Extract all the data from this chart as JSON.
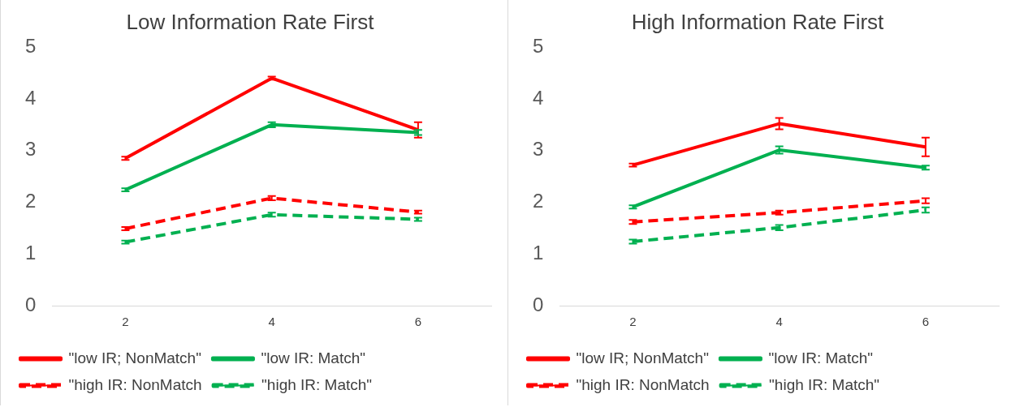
{
  "chart_data": [
    {
      "type": "line",
      "title": "Low Information Rate First",
      "categories": [
        "2",
        "4",
        "6"
      ],
      "ylim": [
        0,
        5
      ],
      "yticks": [
        0,
        1,
        2,
        3,
        4,
        5
      ],
      "grid": false,
      "legend": "bottom",
      "series": [
        {
          "name": "\"low IR; NonMatch\"",
          "color": "#ff0000",
          "line_style": "solid",
          "values": [
            2.85,
            4.4,
            3.4
          ],
          "errors": [
            0.03,
            0.03,
            0.15
          ]
        },
        {
          "name": "\"low IR: Match\"",
          "color": "#00b050",
          "line_style": "solid",
          "values": [
            2.24,
            3.5,
            3.35
          ],
          "errors": [
            0.03,
            0.05,
            0.05
          ]
        },
        {
          "name": "\"high IR: NonMatch",
          "color": "#ff0000",
          "line_style": "dashed",
          "values": [
            1.49,
            2.08,
            1.81
          ],
          "errors": [
            0.03,
            0.04,
            0.03
          ]
        },
        {
          "name": "\"high IR: Match\"",
          "color": "#00b050",
          "line_style": "dashed",
          "values": [
            1.23,
            1.76,
            1.67
          ],
          "errors": [
            0.03,
            0.04,
            0.03
          ]
        }
      ]
    },
    {
      "type": "line",
      "title": "High Information Rate First",
      "categories": [
        "2",
        "4",
        "6"
      ],
      "ylim": [
        0,
        5
      ],
      "yticks": [
        0,
        1,
        2,
        3,
        4,
        5
      ],
      "grid": false,
      "legend": "bottom",
      "series": [
        {
          "name": "\"low IR; NonMatch\"",
          "color": "#ff0000",
          "line_style": "solid",
          "values": [
            2.72,
            3.52,
            3.07
          ],
          "errors": [
            0.03,
            0.11,
            0.18
          ]
        },
        {
          "name": "\"low IR: Match\"",
          "color": "#00b050",
          "line_style": "solid",
          "values": [
            1.91,
            3.01,
            2.67
          ],
          "errors": [
            0.03,
            0.07,
            0.04
          ]
        },
        {
          "name": "\"high IR: NonMatch",
          "color": "#ff0000",
          "line_style": "dashed",
          "values": [
            1.62,
            1.8,
            2.03
          ],
          "errors": [
            0.04,
            0.04,
            0.05
          ]
        },
        {
          "name": "\"high IR: Match\"",
          "color": "#00b050",
          "line_style": "dashed",
          "values": [
            1.24,
            1.51,
            1.85
          ],
          "errors": [
            0.04,
            0.05,
            0.05
          ]
        }
      ]
    }
  ]
}
